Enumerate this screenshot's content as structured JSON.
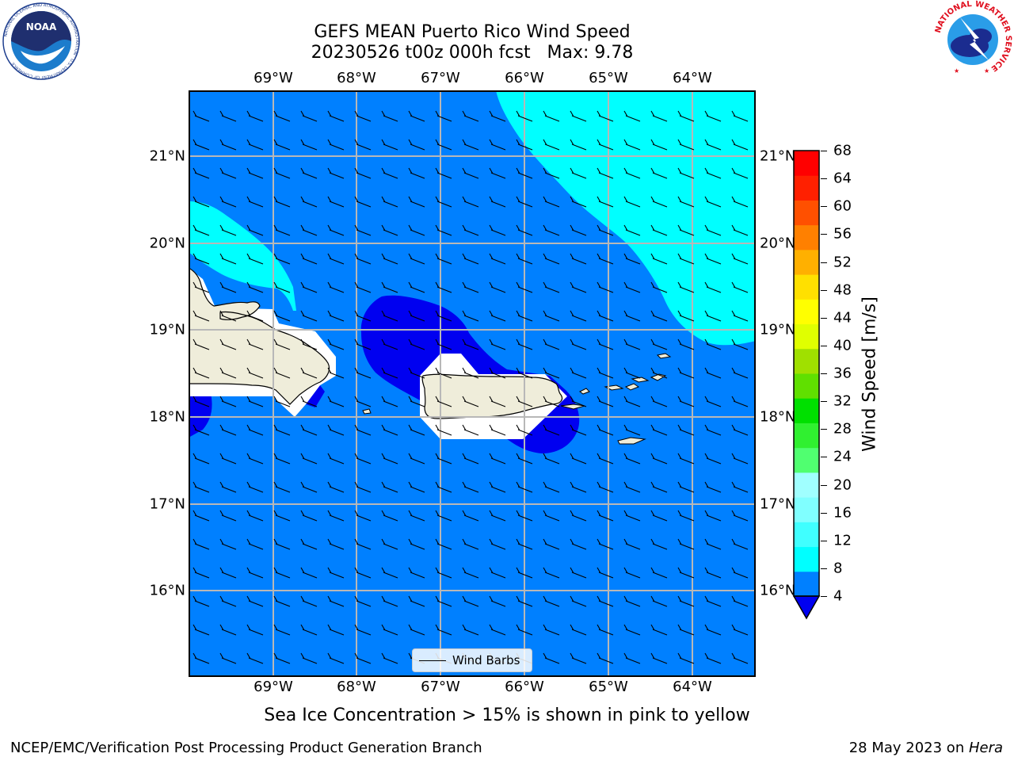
{
  "header": {
    "title": "GEFS MEAN Puerto Rico Wind Speed",
    "subtitle": "20230526 t00z 000h fcst   Max: 9.78"
  },
  "map": {
    "lon_labels_top": [
      "69°W",
      "68°W",
      "67°W",
      "66°W",
      "65°W",
      "64°W"
    ],
    "lon_labels_bottom": [
      "69°W",
      "68°W",
      "67°W",
      "66°W",
      "65°W",
      "64°W"
    ],
    "lat_labels_left": [
      "21°N",
      "20°N",
      "19°N",
      "18°N",
      "17°N",
      "16°N"
    ],
    "lat_labels_right": [
      "21°N",
      "20°N",
      "19°N",
      "18°N",
      "17°N",
      "16°N"
    ],
    "extent_lon": [
      -70.0,
      -63.25
    ],
    "extent_lat": [
      15.0,
      21.75
    ],
    "land_color": "#efedda",
    "legend_label": "Wind Barbs"
  },
  "colorbar": {
    "label": "Wind Speed [m/s]",
    "ticks": [
      "68",
      "64",
      "60",
      "56",
      "52",
      "48",
      "44",
      "40",
      "36",
      "32",
      "28",
      "24",
      "20",
      "16",
      "12",
      "8",
      "4"
    ],
    "colors": [
      "#0000f0",
      "#0080ff",
      "#00ffff",
      "#40ffff",
      "#80ffff",
      "#a0ffff",
      "#50ff70",
      "#30f030",
      "#00e000",
      "#60e000",
      "#a0e000",
      "#e0ff00",
      "#ffff00",
      "#ffe000",
      "#ffb000",
      "#ff8000",
      "#ff5000",
      "#ff2000",
      "#ff0000"
    ]
  },
  "footer": {
    "note": "Sea Ice Concentration > 15% is shown in pink to yellow",
    "credit": "NCEP/EMC/Verification Post Processing Product Generation Branch",
    "date": "28 May 2023 on ",
    "machine": "Hera"
  },
  "logos": {
    "noaa_text": "NOAA",
    "noaa_ring": "NATIONAL OCEANIC AND ATMOSPHERIC ADMINISTRATION · U.S. DEPARTMENT OF COMMERCE",
    "nws_ring": "NATIONAL WEATHER SERVICE"
  }
}
